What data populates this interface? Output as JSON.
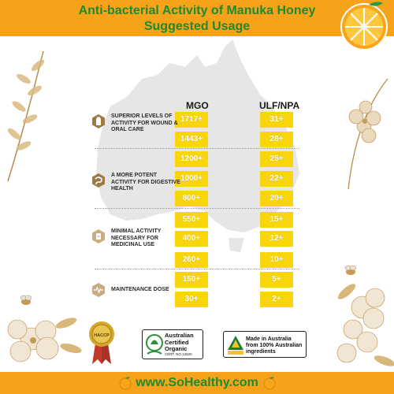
{
  "header": {
    "title_line1": "Anti-bacterial Activity of Manuka Honey",
    "title_line2": "Suggested Usage"
  },
  "columns": {
    "mgo": "MGO",
    "ulf": "ULF/NPA"
  },
  "rows": [
    {
      "mgo": "1717+",
      "ulf": "31+"
    },
    {
      "mgo": "1443+",
      "ulf": "28+"
    },
    {
      "mgo": "1200+",
      "ulf": "25+"
    },
    {
      "mgo": "1000+",
      "ulf": "22+"
    },
    {
      "mgo": "800+",
      "ulf": "20+"
    },
    {
      "mgo": "550+",
      "ulf": "15+"
    },
    {
      "mgo": "400+",
      "ulf": "12+"
    },
    {
      "mgo": "260+",
      "ulf": "10+"
    },
    {
      "mgo": "150+",
      "ulf": "5+"
    },
    {
      "mgo": "30+",
      "ulf": "2+"
    }
  ],
  "categories": [
    {
      "label": "SUPERIOR LEVELS OF ACTIVITY FOR WOUND & ORAL CARE",
      "icon": "medicine-bottle-icon"
    },
    {
      "label": "A MORE POTENT ACTIVITY FOR DIGESTIVE HEALTH",
      "icon": "digestive-icon"
    },
    {
      "label": "MINIMAL ACTIVITY NECESSARY FOR MEDICINAL USE",
      "icon": "medicine-icon"
    },
    {
      "label": "MAINTENANCE DOSE",
      "icon": "heartbeat-icon"
    }
  ],
  "badges": {
    "haccp": "HACCP",
    "aco_line1": "Australian",
    "aco_line2": "Certified",
    "aco_line3": "Organic",
    "aco_cert": "CERT. NO 12520",
    "madein_line1": "Made in Australia",
    "madein_line2": "from 100% Australian",
    "madein_line3": "ingredients"
  },
  "footer": {
    "url": "www.SoHealthy.com"
  },
  "colors": {
    "orange": "#f6a21a",
    "green": "#1f8a2e",
    "yellow": "#f8d60b",
    "map_gray": "#e6e6e6"
  }
}
